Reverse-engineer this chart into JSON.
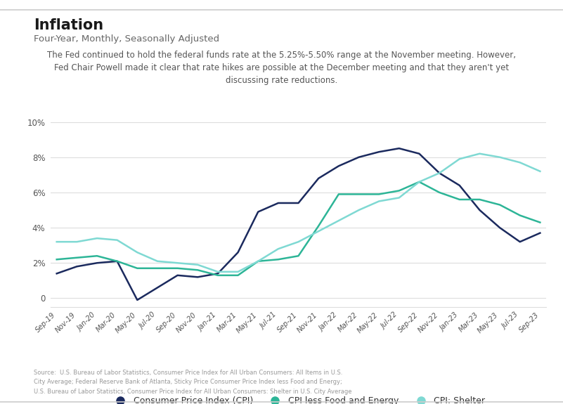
{
  "title": "Inflation",
  "subtitle": "Four-Year, Monthly, Seasonally Adjusted",
  "annotation_line1": "The Fed continued to hold the federal funds rate at the 5.25%-5.50% range at the November meeting. However,",
  "annotation_line2": "Fed Chair Powell made it clear that rate hikes are possible at the December meeting and that they aren't yet",
  "annotation_line3": "discussing rate reductions.",
  "source_line1": "Source:  U.S. Bureau of Labor Statistics, Consumer Price Index for All Urban Consumers: All Items in U.S.",
  "source_line2": "City Average; Federal Reserve Bank of Atlanta, Sticky Price Consumer Price Index less Food and Energy;",
  "source_line3": "U.S. Bureau of Labor Statistics, Consumer Price Index for All Urban Consumers: Shelter in U.S. City Average",
  "x_labels": [
    "Sep-19",
    "Nov-19",
    "Jan-20",
    "Mar-20",
    "May-20",
    "Jul-20",
    "Sep-20",
    "Nov-20",
    "Jan-21",
    "Mar-21",
    "May-21",
    "Jul-21",
    "Sep-21",
    "Nov-21",
    "Jan-22",
    "Mar-22",
    "May-22",
    "Jul-22",
    "Sep-22",
    "Nov-22",
    "Jan-23",
    "Mar-23",
    "May-23",
    "Jul-23",
    "Sep-23"
  ],
  "cpi": [
    1.4,
    1.8,
    2.0,
    2.1,
    -0.1,
    0.6,
    1.3,
    1.2,
    1.4,
    2.6,
    4.9,
    5.4,
    5.4,
    6.8,
    7.5,
    8.0,
    8.3,
    8.5,
    8.2,
    7.1,
    6.4,
    5.0,
    4.0,
    3.2,
    3.7
  ],
  "cpi_less": [
    2.2,
    2.3,
    2.4,
    2.1,
    1.7,
    1.7,
    1.7,
    1.6,
    1.3,
    1.3,
    2.1,
    2.2,
    2.4,
    4.1,
    5.9,
    5.9,
    5.9,
    6.1,
    6.6,
    6.0,
    5.6,
    5.6,
    5.3,
    4.7,
    4.3
  ],
  "cpi_shelter": [
    3.2,
    3.2,
    3.4,
    3.3,
    2.6,
    2.1,
    2.0,
    1.9,
    1.5,
    1.5,
    2.1,
    2.8,
    3.2,
    3.8,
    4.4,
    5.0,
    5.5,
    5.7,
    6.6,
    7.1,
    7.9,
    8.2,
    8.0,
    7.7,
    7.2
  ],
  "cpi_color": "#1b2a5e",
  "cpi_less_color": "#2db597",
  "cpi_shelter_color": "#7fd9d3",
  "ylim": [
    -0.5,
    10.5
  ],
  "yticks": [
    0,
    2,
    4,
    6,
    8,
    10
  ],
  "ytick_labels": [
    "0",
    "2%",
    "4%",
    "6%",
    "8%",
    "10%"
  ],
  "background_color": "#ffffff",
  "legend_labels": [
    "Consumer Price Index (CPI)",
    "CPI less Food and Energy",
    "CPI: Shelter"
  ],
  "top_border_color": "#cccccc",
  "bottom_border_color": "#cccccc",
  "grid_color": "#dddddd",
  "text_color_title": "#1a1a1a",
  "text_color_subtitle": "#666666",
  "text_color_annot": "#555555",
  "text_color_source": "#999999",
  "text_color_ticks": "#555555"
}
